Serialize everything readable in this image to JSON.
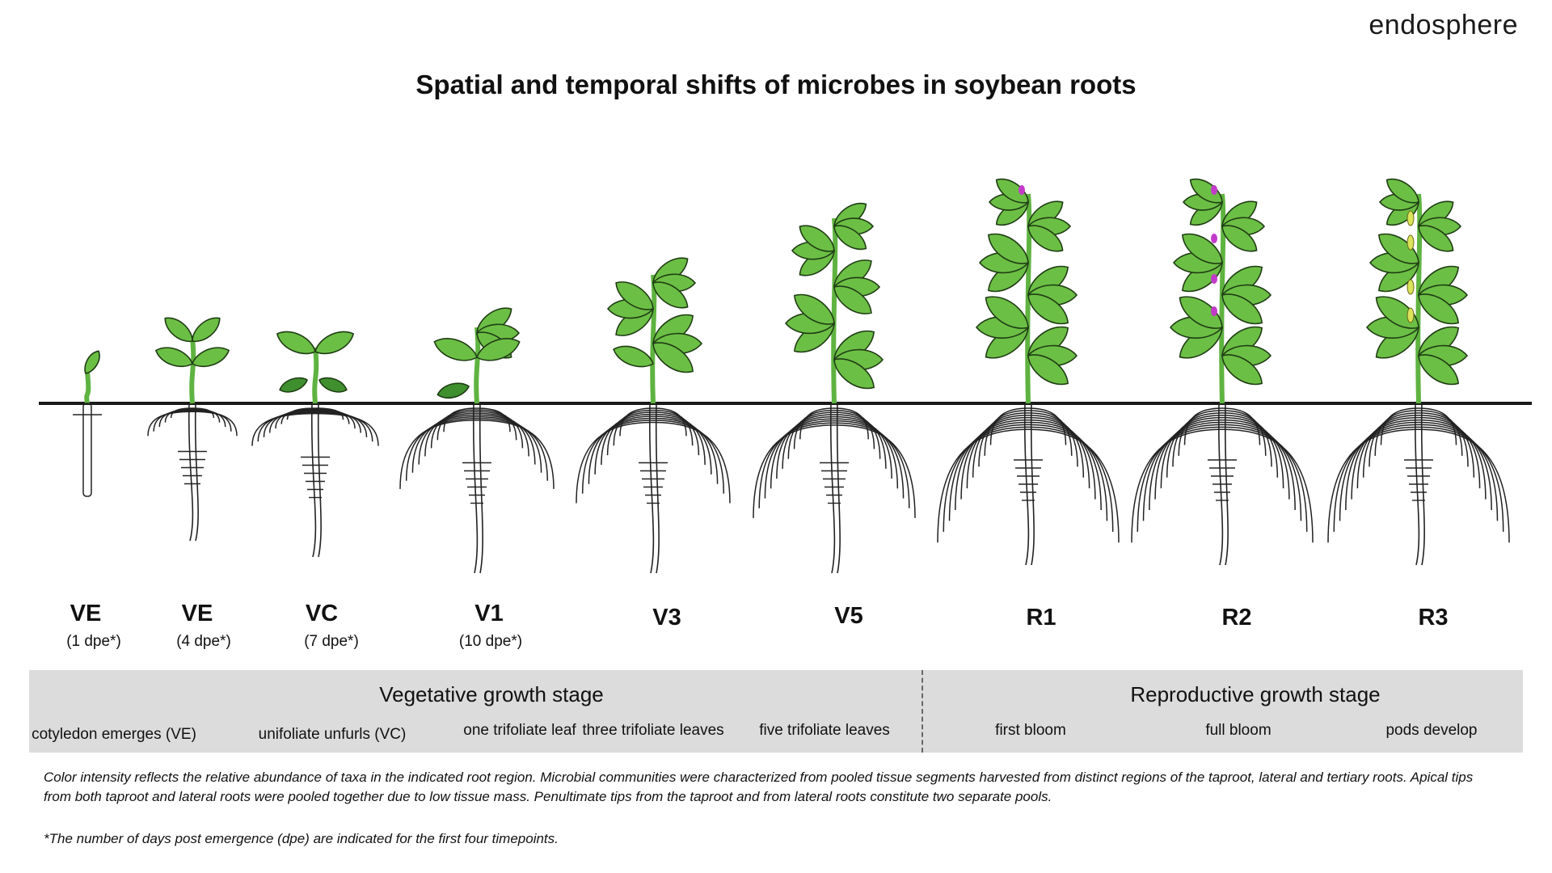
{
  "brand": "endosphere",
  "title": "Spatial and temporal shifts of microbes in soybean roots",
  "colors": {
    "leaf": "#6cbf45",
    "leaf_dark": "#3f8f2f",
    "stem": "#5fb340",
    "flower": "#c23bc9",
    "pod": "#dbe35a",
    "band": "#dcdcdd"
  },
  "stages": [
    {
      "label": "VE",
      "sub": "(1 dpe*)"
    },
    {
      "label": "VE",
      "sub": "(4 dpe*)"
    },
    {
      "label": "VC",
      "sub": "(7 dpe*)"
    },
    {
      "label": "V1",
      "sub": "(10 dpe*)"
    },
    {
      "label": "V3",
      "sub": ""
    },
    {
      "label": "V5",
      "sub": ""
    },
    {
      "label": "R1",
      "sub": ""
    },
    {
      "label": "R2",
      "sub": ""
    },
    {
      "label": "R3",
      "sub": ""
    }
  ],
  "band": {
    "vegetative_heading": "Vegetative growth stage",
    "reproductive_heading": "Reproductive growth stage",
    "descriptions": [
      "cotyledon emerges (VE)",
      "unifoliate unfurls (VC)",
      "one trifoliate leaf",
      "three trifoliate leaves",
      "five trifoliate leaves",
      "first bloom",
      "full bloom",
      "pods develop"
    ]
  },
  "notes": [
    "Color intensity reflects the relative abundance  of  taxa in the indicated root region. Microbial communities were characterized from pooled tissue segments harvested from distinct regions of the taproot, lateral and tertiary roots. Apical tips from both taproot and lateral roots were  pooled together due to low tissue mass. Penultimate tips from the taproot and from lateral roots constitute two separate pools.",
    "*The number of days post emergence (dpe) are indicated for the first four timepoints."
  ]
}
